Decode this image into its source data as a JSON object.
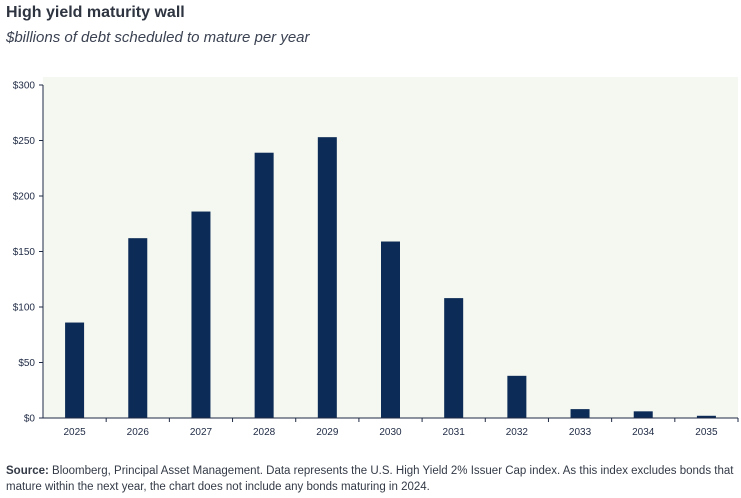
{
  "header": {
    "title": "High yield maturity wall",
    "subtitle": "$billions of debt scheduled to mature per year"
  },
  "footer": {
    "source_label": "Source:",
    "source_text": " Bloomberg, Principal Asset Management. Data represents the U.S. High Yield 2% Issuer Cap index. As this index excludes bonds that mature within the next year, the chart does not include any bonds maturing in 2024."
  },
  "colors": {
    "bar": "#0c2b56",
    "plot_bg": "#f5f8f1",
    "axis": "#1f2a44"
  },
  "chart_data": {
    "type": "bar",
    "title": "High yield maturity wall",
    "subtitle": "$billions of debt scheduled to mature per year",
    "xlabel": "",
    "ylabel": "",
    "categories": [
      "2025",
      "2026",
      "2027",
      "2028",
      "2029",
      "2030",
      "2031",
      "2032",
      "2033",
      "2034",
      "2035"
    ],
    "values": [
      86,
      162,
      186,
      239,
      253,
      159,
      108,
      38,
      8,
      6,
      2
    ],
    "ylim": [
      0,
      300
    ],
    "yticks": [
      0,
      50,
      100,
      150,
      200,
      250,
      300
    ],
    "ytick_labels": [
      "$0",
      "$50",
      "$100",
      "$150",
      "$200",
      "$250",
      "$300"
    ],
    "grid": false,
    "legend": "none"
  }
}
